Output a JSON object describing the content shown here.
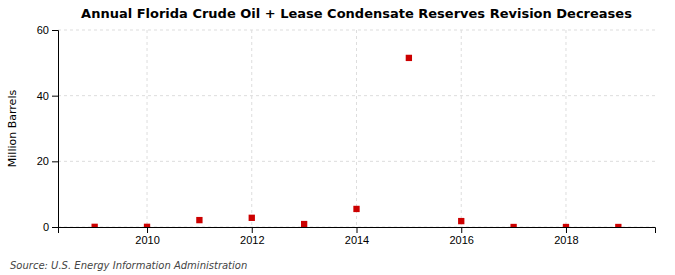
{
  "chart_data": {
    "type": "scatter",
    "title": "Annual Florida Crude Oil + Lease Condensate Reserves Revision Decreases",
    "ylabel": "Million Barrels",
    "source": "Source: U.S. Energy Information Administration",
    "x": [
      2009,
      2010,
      2011,
      2012,
      2013,
      2014,
      2015,
      2016,
      2017,
      2018,
      2019
    ],
    "values": [
      0.05,
      0.05,
      2.1,
      2.8,
      0.9,
      5.5,
      51.5,
      1.8,
      0.0,
      0.0,
      0.0
    ],
    "color": "#cc0000",
    "marker": "square",
    "xlim": [
      2008.3,
      2019.7
    ],
    "ylim": [
      0,
      60
    ],
    "xticks": [
      2010,
      2012,
      2014,
      2016,
      2018
    ],
    "yticks": [
      0,
      20,
      40,
      60
    ],
    "grid": true
  }
}
